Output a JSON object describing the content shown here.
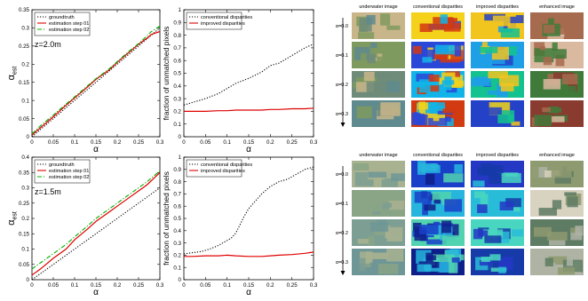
{
  "chart_data": [
    {
      "type": "line",
      "ylabel_main": "α",
      "ylabel_sub": "est",
      "xlabel": "α",
      "annotation": "z=2.0m",
      "xlim": [
        0,
        0.3
      ],
      "ylim": [
        0,
        0.35
      ],
      "xticks": [
        "0",
        "0.05",
        "0.1",
        "0.15",
        "0.2",
        "0.25",
        "0.3"
      ],
      "yticks": [
        "0",
        "0.05",
        "0.1",
        "0.15",
        "0.2",
        "0.25",
        "0.3",
        "0.35"
      ],
      "legend": "top-left",
      "series": [
        {
          "name": "groundtruth",
          "color": "#000000",
          "style": "dotted",
          "x": [
            0,
            0.05,
            0.1,
            0.15,
            0.2,
            0.25,
            0.3
          ],
          "y": [
            0,
            0.05,
            0.1,
            0.15,
            0.2,
            0.25,
            0.3
          ]
        },
        {
          "name": "estimation step 01",
          "color": "#e00000",
          "style": "solid",
          "x": [
            0,
            0.02,
            0.05,
            0.08,
            0.1,
            0.13,
            0.15,
            0.18,
            0.2,
            0.22,
            0.25,
            0.27,
            0.28,
            0.3
          ],
          "y": [
            0.005,
            0.025,
            0.055,
            0.087,
            0.107,
            0.137,
            0.158,
            0.183,
            0.205,
            0.225,
            0.255,
            0.272,
            0.282,
            0.29
          ]
        },
        {
          "name": "estimation step 02",
          "color": "#00b000",
          "style": "dashdot",
          "x": [
            0,
            0.02,
            0.05,
            0.08,
            0.1,
            0.13,
            0.15,
            0.18,
            0.2,
            0.22,
            0.25,
            0.27,
            0.28,
            0.3
          ],
          "y": [
            0.008,
            0.03,
            0.06,
            0.09,
            0.11,
            0.14,
            0.16,
            0.186,
            0.207,
            0.228,
            0.257,
            0.278,
            0.29,
            0.305
          ]
        }
      ]
    },
    {
      "type": "line",
      "ylabel": "fraction of unmatched pixels",
      "xlabel": "α",
      "xlim": [
        0,
        0.3
      ],
      "ylim": [
        0,
        1
      ],
      "xticks": [
        "0",
        "0.05",
        "0.1",
        "0.15",
        "0.2",
        "0.25",
        "0.3"
      ],
      "yticks": [
        "0",
        "0.1",
        "0.2",
        "0.3",
        "0.4",
        "0.5",
        "0.6",
        "0.7",
        "0.8",
        "0.9",
        "1"
      ],
      "legend": "top-left",
      "series": [
        {
          "name": "conventional disparities",
          "color": "#000000",
          "style": "dotted",
          "x": [
            0,
            0.02,
            0.05,
            0.08,
            0.1,
            0.12,
            0.15,
            0.18,
            0.2,
            0.22,
            0.25,
            0.28,
            0.3
          ],
          "y": [
            0.25,
            0.27,
            0.3,
            0.34,
            0.38,
            0.42,
            0.46,
            0.51,
            0.56,
            0.58,
            0.64,
            0.7,
            0.73
          ]
        },
        {
          "name": "improved disparities",
          "color": "#e00000",
          "style": "solid",
          "x": [
            0,
            0.02,
            0.05,
            0.08,
            0.1,
            0.12,
            0.15,
            0.18,
            0.2,
            0.22,
            0.25,
            0.28,
            0.3
          ],
          "y": [
            0.2,
            0.2,
            0.2,
            0.205,
            0.205,
            0.21,
            0.21,
            0.21,
            0.215,
            0.215,
            0.22,
            0.22,
            0.225
          ]
        }
      ]
    },
    {
      "type": "line",
      "ylabel_main": "α",
      "ylabel_sub": "est",
      "xlabel": "α",
      "annotation": "z=1.5m",
      "xlim": [
        0,
        0.3
      ],
      "ylim": [
        0,
        0.4
      ],
      "xticks": [
        "0",
        "0.05",
        "0.1",
        "0.15",
        "0.2",
        "0.25",
        "0.3"
      ],
      "yticks": [
        "0",
        "0.05",
        "0.1",
        "0.15",
        "0.2",
        "0.25",
        "0.3",
        "0.35",
        "0.4"
      ],
      "legend": "top-left",
      "series": [
        {
          "name": "groundtruth",
          "color": "#000000",
          "style": "dotted",
          "x": [
            0,
            0.05,
            0.1,
            0.15,
            0.2,
            0.25,
            0.3
          ],
          "y": [
            0,
            0.05,
            0.1,
            0.15,
            0.2,
            0.25,
            0.3
          ]
        },
        {
          "name": "estimation step 01",
          "color": "#e00000",
          "style": "solid",
          "x": [
            0,
            0.02,
            0.05,
            0.08,
            0.1,
            0.13,
            0.15,
            0.18,
            0.2,
            0.22,
            0.25,
            0.27,
            0.3
          ],
          "y": [
            0.015,
            0.035,
            0.07,
            0.1,
            0.13,
            0.165,
            0.19,
            0.22,
            0.24,
            0.26,
            0.29,
            0.31,
            0.35
          ]
        },
        {
          "name": "estimation step 02",
          "color": "#00b000",
          "style": "dashdot",
          "x": [
            0,
            0.02,
            0.05,
            0.08,
            0.1,
            0.13,
            0.15,
            0.18,
            0.2,
            0.22,
            0.25,
            0.27,
            0.3
          ],
          "y": [
            0.035,
            0.055,
            0.085,
            0.115,
            0.14,
            0.175,
            0.2,
            0.23,
            0.25,
            0.27,
            0.3,
            0.32,
            0.355
          ]
        }
      ]
    },
    {
      "type": "line",
      "ylabel": "fraction of unmatched pixels",
      "xlabel": "α",
      "xlim": [
        0,
        0.3
      ],
      "ylim": [
        0,
        1
      ],
      "xticks": [
        "0",
        "0.05",
        "0.1",
        "0.15",
        "0.2",
        "0.25",
        "0.3"
      ],
      "yticks": [
        "0",
        "0.1",
        "0.2",
        "0.3",
        "0.4",
        "0.5",
        "0.6",
        "0.7",
        "0.8",
        "0.9",
        "1"
      ],
      "legend": "top-left",
      "series": [
        {
          "name": "conventional disparities",
          "color": "#000000",
          "style": "dotted",
          "x": [
            0,
            0.02,
            0.04,
            0.06,
            0.08,
            0.1,
            0.11,
            0.12,
            0.13,
            0.14,
            0.15,
            0.16,
            0.18,
            0.2,
            0.22,
            0.24,
            0.26,
            0.28,
            0.3
          ],
          "y": [
            0.21,
            0.22,
            0.23,
            0.25,
            0.28,
            0.32,
            0.34,
            0.38,
            0.45,
            0.52,
            0.58,
            0.62,
            0.7,
            0.76,
            0.8,
            0.82,
            0.86,
            0.9,
            0.92
          ]
        },
        {
          "name": "improved disparities",
          "color": "#e00000",
          "style": "solid",
          "x": [
            0,
            0.02,
            0.05,
            0.08,
            0.1,
            0.12,
            0.15,
            0.18,
            0.2,
            0.22,
            0.25,
            0.28,
            0.3
          ],
          "y": [
            0.19,
            0.19,
            0.195,
            0.195,
            0.2,
            0.195,
            0.19,
            0.19,
            0.195,
            0.2,
            0.205,
            0.215,
            0.225
          ]
        }
      ]
    }
  ],
  "image_grids": [
    {
      "headers": [
        "underwater image",
        "conventional disparities",
        "improved disparities",
        "enhanced image"
      ],
      "row_labels": [
        "α=0.0",
        "α=0.1",
        "α=0.2",
        "α=0.3"
      ],
      "palettes": {
        "underwater": [
          "#c9b58a",
          "#7f9a5e",
          "#6f8b7a",
          "#5f8a8e"
        ],
        "conventional": [
          "#f4d11a",
          "#2a48d8",
          "#10b4e8",
          "#d23a12"
        ],
        "improved": [
          "#f2c41e",
          "#1f9fe6",
          "#13c28f",
          "#2442c8"
        ],
        "enhanced": [
          "#a66a4e",
          "#d9b9a0",
          "#3f7a3a",
          "#8a3b2f"
        ]
      }
    },
    {
      "headers": [
        "underwater image",
        "conventional disparities",
        "improved disparities",
        "enhanced image"
      ],
      "row_labels": [
        "α=0.0",
        "α=0.1",
        "α=0.2",
        "α=0.3"
      ],
      "palettes": {
        "underwater": [
          "#a8b290",
          "#8aa486",
          "#7d9e92",
          "#6e9696"
        ],
        "conventional": [
          "#1a3fc8",
          "#27b5dd",
          "#51d3b0",
          "#0f1f8a"
        ],
        "improved": [
          "#2438c4",
          "#29bcd8",
          "#49d6c0",
          "#163aa8"
        ],
        "enhanced": [
          "#8e9a70",
          "#d8d2c0",
          "#5e7b63",
          "#aeb3a4"
        ]
      }
    }
  ]
}
